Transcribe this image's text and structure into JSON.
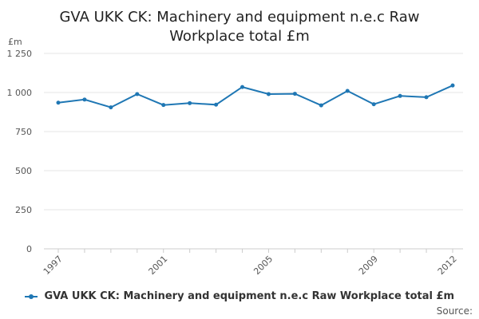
{
  "chart_data": {
    "type": "line",
    "title_line1": "GVA UKK CK: Machinery and equipment n.e.c Raw",
    "title_line2": "Workplace total £m",
    "ylabel": "£m",
    "xlabel": "",
    "ylim": [
      0,
      1250
    ],
    "yticks": [
      0,
      250,
      500,
      750,
      1000,
      1250
    ],
    "ytick_labels": [
      "0",
      "250",
      "500",
      "750",
      "1 000",
      "1 250"
    ],
    "xlim": [
      1997,
      2012
    ],
    "xtick_labels": [
      "1997",
      "2001",
      "2005",
      "2009",
      "2012"
    ],
    "grid": true,
    "legend_position": "bottom",
    "color": "#1f77b4",
    "series": [
      {
        "name": "GVA UKK CK: Machinery and equipment n.e.c Raw Workplace total £m",
        "x": [
          1997,
          1998,
          1999,
          2000,
          2001,
          2002,
          2003,
          2004,
          2005,
          2006,
          2007,
          2008,
          2009,
          2010,
          2011,
          2012
        ],
        "values": [
          935,
          955,
          905,
          990,
          920,
          932,
          922,
          1035,
          990,
          992,
          918,
          1010,
          925,
          978,
          970,
          1045
        ]
      }
    ]
  },
  "source_label": "Source:"
}
